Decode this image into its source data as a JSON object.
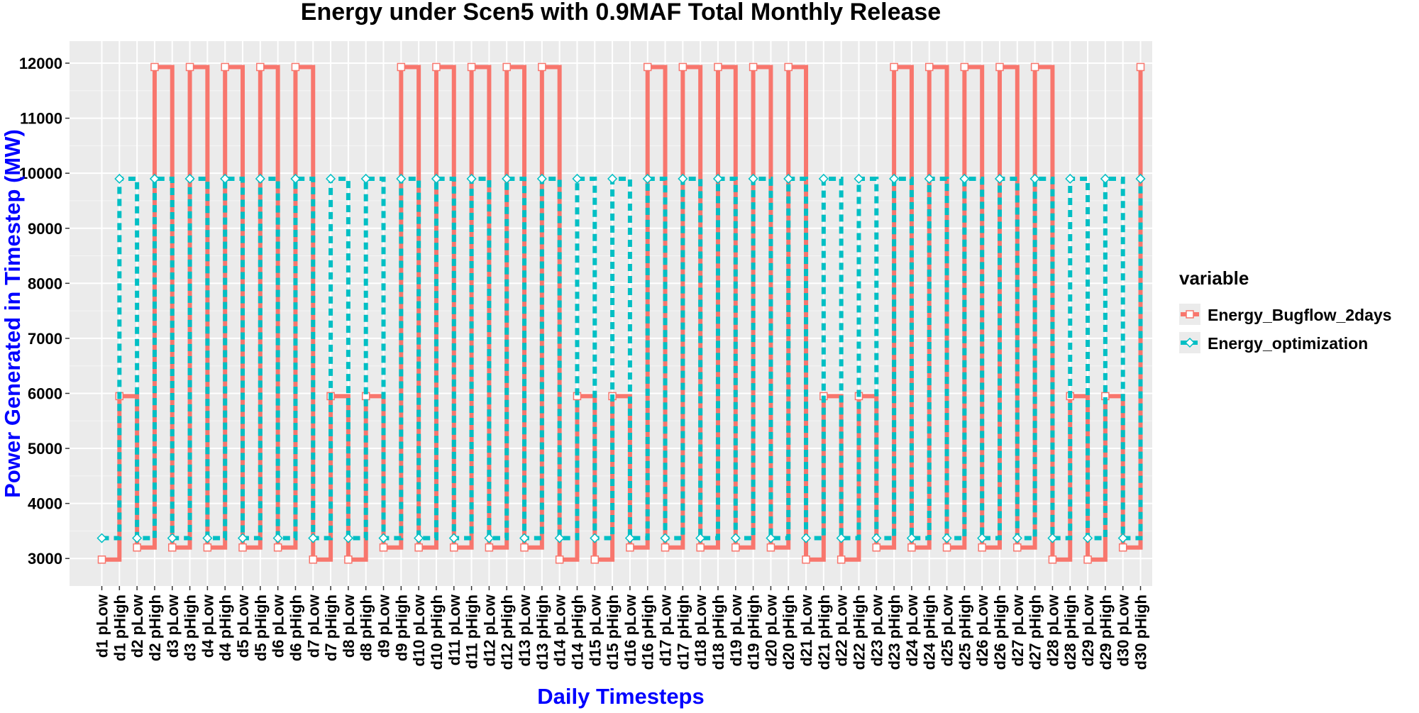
{
  "chart_data": {
    "type": "line",
    "title": "Energy under Scen5 with 0.9MAF Total Monthly Release",
    "xlabel": "Daily Timesteps",
    "ylabel": "Power Generated in Timestep (MW)",
    "ylim": [
      2500,
      12400
    ],
    "y_ticks": [
      3000,
      4000,
      5000,
      6000,
      7000,
      8000,
      9000,
      10000,
      11000,
      12000
    ],
    "grid": true,
    "legend": {
      "title": "variable",
      "position": "right"
    },
    "categories": [
      "d1 pLow",
      "d1 pHigh",
      "d2 pLow",
      "d2 pHigh",
      "d3 pLow",
      "d3 pHigh",
      "d4 pLow",
      "d4 pHigh",
      "d5 pLow",
      "d5 pHigh",
      "d6 pLow",
      "d6 pHigh",
      "d7 pLow",
      "d7 pHigh",
      "d8 pLow",
      "d8 pHigh",
      "d9 pLow",
      "d9 pHigh",
      "d10 pLow",
      "d10 pHigh",
      "d11 pLow",
      "d11 pHigh",
      "d12 pLow",
      "d12 pHigh",
      "d13 pLow",
      "d13 pHigh",
      "d14 pLow",
      "d14 pHigh",
      "d15 pLow",
      "d15 pHigh",
      "d16 pLow",
      "d16 pHigh",
      "d17 pLow",
      "d17 pHigh",
      "d18 pLow",
      "d18 pHigh",
      "d19 pLow",
      "d19 pHigh",
      "d20 pLow",
      "d20 pHigh",
      "d21 pLow",
      "d21 pHigh",
      "d22 pLow",
      "d22 pHigh",
      "d23 pLow",
      "d23 pHigh",
      "d24 pLow",
      "d24 pHigh",
      "d25 pLow",
      "d25 pHigh",
      "d26 pLow",
      "d26 pHigh",
      "d27 pLow",
      "d27 pHigh",
      "d28 pLow",
      "d28 pHigh",
      "d29 pLow",
      "d29 pHigh",
      "d30 pLow",
      "d30 pHigh"
    ],
    "series": [
      {
        "name": "Energy_Bugflow_2days",
        "color": "#F8766D",
        "line_style": "solid",
        "marker": "square",
        "values": [
          2980,
          5950,
          3200,
          11930,
          3200,
          11930,
          3200,
          11930,
          3200,
          11930,
          3200,
          11930,
          2980,
          5950,
          2980,
          5950,
          3200,
          11930,
          3200,
          11930,
          3200,
          11930,
          3200,
          11930,
          3200,
          11930,
          2980,
          5950,
          2980,
          5950,
          3200,
          11930,
          3200,
          11930,
          3200,
          11930,
          3200,
          11930,
          3200,
          11930,
          2980,
          5950,
          2980,
          5950,
          3200,
          11930,
          3200,
          11930,
          3200,
          11930,
          3200,
          11930,
          3200,
          11930,
          2980,
          5950,
          2980,
          5950,
          3200,
          11930
        ]
      },
      {
        "name": "Energy_optimization",
        "color": "#00BFC4",
        "line_style": "dashed",
        "marker": "diamond",
        "values": [
          3370,
          9900,
          3370,
          9900,
          3370,
          9900,
          3370,
          9900,
          3370,
          9900,
          3370,
          9900,
          3370,
          9900,
          3370,
          9900,
          3370,
          9900,
          3370,
          9900,
          3370,
          9900,
          3370,
          9900,
          3370,
          9900,
          3370,
          9900,
          3370,
          9900,
          3370,
          9900,
          3370,
          9900,
          3370,
          9900,
          3370,
          9900,
          3370,
          9900,
          3370,
          9900,
          3370,
          9900,
          3370,
          9900,
          3370,
          9900,
          3370,
          9900,
          3370,
          9900,
          3370,
          9900,
          3370,
          9900,
          3370,
          9900,
          3370,
          9900
        ]
      }
    ]
  }
}
